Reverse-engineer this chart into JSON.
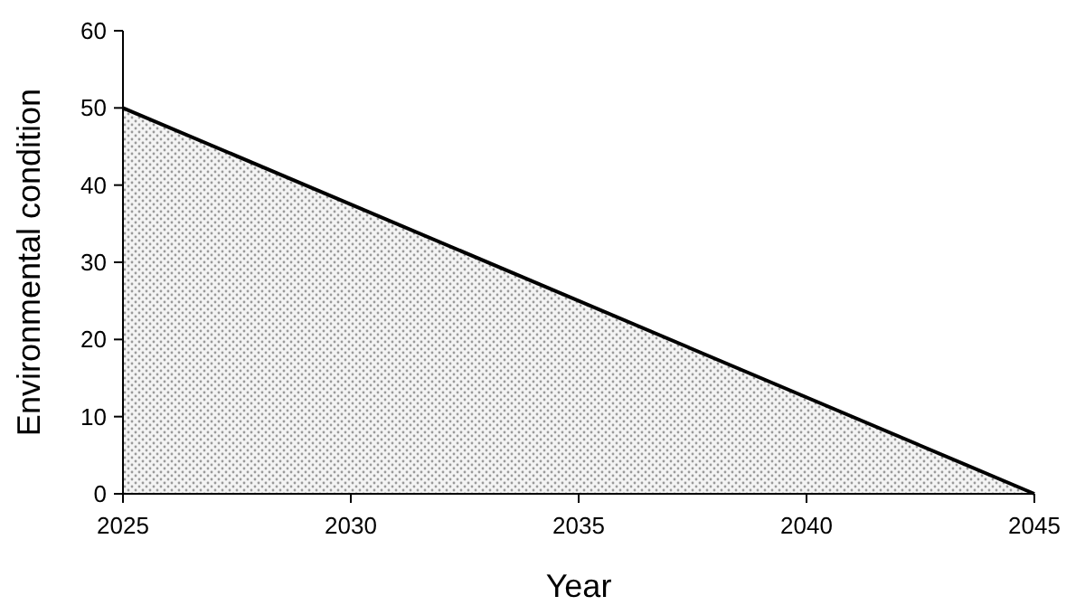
{
  "chart_data": {
    "type": "area",
    "xlabel": "Year",
    "ylabel": "Environmental condition",
    "x": [
      2025,
      2045
    ],
    "series": [
      {
        "color": "#000000",
        "values": [
          50,
          0
        ]
      }
    ],
    "xlim": [
      2025,
      2045
    ],
    "xticks": [
      2025,
      2030,
      2035,
      2040,
      2045
    ],
    "ylim": [
      0,
      60
    ],
    "yticks": [
      0,
      10,
      20,
      30,
      40,
      50,
      60
    ],
    "grid": false
  }
}
